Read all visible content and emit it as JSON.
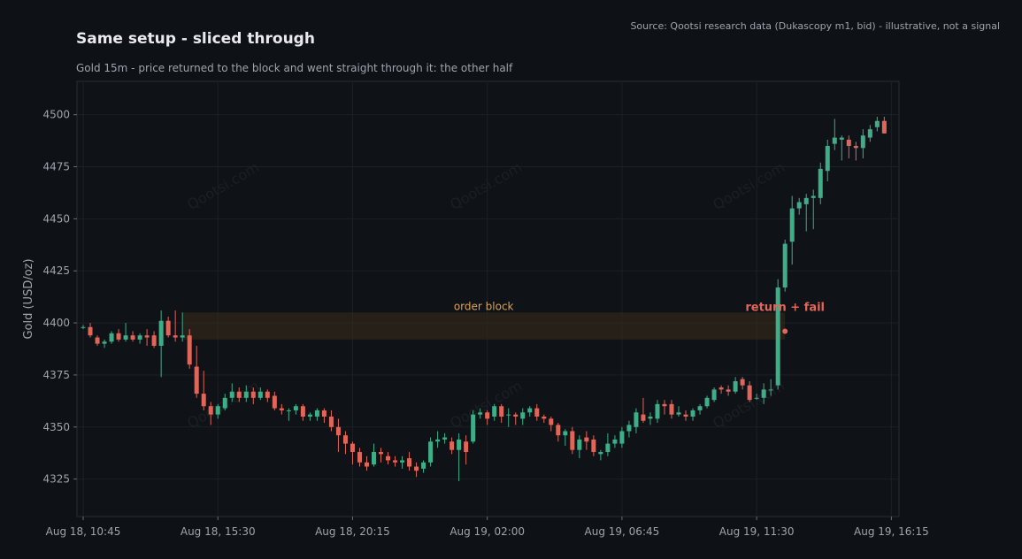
{
  "header": {
    "title": "Same setup - sliced through",
    "subtitle": "Gold 15m - price returned to the block and went straight through it: the other half",
    "source": "Source: Qootsi research data (Dukascopy m1, bid) - illustrative, not a signal"
  },
  "watermark": "Qootsi.com",
  "colors": {
    "background": "#0e1116",
    "panel": "#0f1217",
    "up": "#3fae88",
    "down": "#e0665a",
    "zone": "#3a2c1c",
    "zone_label": "#d9a25a",
    "annotation": "#e2665a",
    "grid": "#1c2027",
    "text": "#a0a4ab"
  },
  "chart_data": {
    "type": "candlestick",
    "ylabel": "Gold (USD/oz)",
    "xlabel": "",
    "ylim": [
      4307,
      4516
    ],
    "yticks": [
      4325,
      4350,
      4375,
      4400,
      4425,
      4450,
      4475,
      4500
    ],
    "xticks": [
      {
        "index": 0,
        "label": "Aug 18, 10:45"
      },
      {
        "index": 19,
        "label": "Aug 18, 15:30"
      },
      {
        "index": 38,
        "label": "Aug 18, 20:15"
      },
      {
        "index": 57,
        "label": "Aug 19, 02:00"
      },
      {
        "index": 76,
        "label": "Aug 19, 06:45"
      },
      {
        "index": 95,
        "label": "Aug 19, 11:30"
      },
      {
        "index": 114,
        "label": "Aug 19, 16:15"
      }
    ],
    "order_block": {
      "low": 4392,
      "high": 4405,
      "start_index": 14,
      "end_index": 99,
      "label": "order block"
    },
    "annotation": {
      "label": "return + fail",
      "index": 99,
      "price": 4396
    },
    "candles": [
      [
        4398,
        4399,
        4397,
        4398
      ],
      [
        4398,
        4400,
        4393,
        4394
      ],
      [
        4393,
        4394,
        4389,
        4390
      ],
      [
        4390,
        4392,
        4388,
        4391
      ],
      [
        4391,
        4396,
        4390,
        4395
      ],
      [
        4395,
        4397,
        4391,
        4392
      ],
      [
        4392,
        4400,
        4391,
        4394
      ],
      [
        4394,
        4396,
        4391,
        4392
      ],
      [
        4392,
        4395,
        4390,
        4394
      ],
      [
        4394,
        4397,
        4389,
        4393
      ],
      [
        4394,
        4396,
        4388,
        4389
      ],
      [
        4389,
        4406,
        4374,
        4401
      ],
      [
        4401,
        4403,
        4393,
        4394
      ],
      [
        4394,
        4406,
        4391,
        4393
      ],
      [
        4393,
        4405,
        4391,
        4394
      ],
      [
        4394,
        4397,
        4378,
        4380
      ],
      [
        4379,
        4389,
        4364,
        4366
      ],
      [
        4366,
        4377,
        4358,
        4360
      ],
      [
        4360,
        4362,
        4351,
        4356
      ],
      [
        4356,
        4361,
        4354,
        4360
      ],
      [
        4359,
        4366,
        4358,
        4364
      ],
      [
        4364,
        4371,
        4362,
        4367
      ],
      [
        4367,
        4369,
        4362,
        4364
      ],
      [
        4364,
        4370,
        4362,
        4367
      ],
      [
        4367,
        4369,
        4361,
        4364
      ],
      [
        4364,
        4369,
        4363,
        4367
      ],
      [
        4367,
        4368,
        4362,
        4364
      ],
      [
        4365,
        4367,
        4358,
        4359
      ],
      [
        4359,
        4361,
        4356,
        4358
      ],
      [
        4358,
        4359,
        4353,
        4358
      ],
      [
        4358,
        4361,
        4356,
        4360
      ],
      [
        4360,
        4361,
        4353,
        4355
      ],
      [
        4355,
        4357,
        4353,
        4356
      ],
      [
        4355,
        4359,
        4353,
        4358
      ],
      [
        4358,
        4359,
        4352,
        4355
      ],
      [
        4355,
        4358,
        4348,
        4350
      ],
      [
        4350,
        4354,
        4338,
        4346
      ],
      [
        4346,
        4348,
        4337,
        4342
      ],
      [
        4342,
        4343,
        4332,
        4338
      ],
      [
        4338,
        4340,
        4331,
        4333
      ],
      [
        4333,
        4336,
        4329,
        4331
      ],
      [
        4332,
        4342,
        4331,
        4338
      ],
      [
        4338,
        4340,
        4333,
        4337
      ],
      [
        4336,
        4338,
        4332,
        4334
      ],
      [
        4334,
        4336,
        4331,
        4333
      ],
      [
        4333,
        4336,
        4330,
        4334
      ],
      [
        4335,
        4338,
        4329,
        4331
      ],
      [
        4331,
        4333,
        4326,
        4329
      ],
      [
        4330,
        4334,
        4328,
        4333
      ],
      [
        4333,
        4345,
        4331,
        4343
      ],
      [
        4343,
        4348,
        4340,
        4344
      ],
      [
        4344,
        4347,
        4342,
        4345
      ],
      [
        4343,
        4345,
        4337,
        4339
      ],
      [
        4339,
        4347,
        4324,
        4344
      ],
      [
        4343,
        4346,
        4332,
        4338
      ],
      [
        4343,
        4358,
        4342,
        4356
      ],
      [
        4356,
        4359,
        4354,
        4357
      ],
      [
        4357,
        4358,
        4351,
        4354
      ],
      [
        4355,
        4361,
        4353,
        4360
      ],
      [
        4360,
        4361,
        4352,
        4355
      ],
      [
        4356,
        4359,
        4350,
        4356
      ],
      [
        4356,
        4357,
        4351,
        4355
      ],
      [
        4354,
        4359,
        4351,
        4357
      ],
      [
        4357,
        4360,
        4355,
        4359
      ],
      [
        4359,
        4361,
        4353,
        4355
      ],
      [
        4355,
        4356,
        4352,
        4354
      ],
      [
        4354,
        4355,
        4348,
        4351
      ],
      [
        4351,
        4352,
        4343,
        4346
      ],
      [
        4346,
        4349,
        4341,
        4348
      ],
      [
        4348,
        4350,
        4337,
        4339
      ],
      [
        4339,
        4346,
        4335,
        4344
      ],
      [
        4345,
        4348,
        4339,
        4343
      ],
      [
        4344,
        4346,
        4336,
        4338
      ],
      [
        4337,
        4339,
        4334,
        4338
      ],
      [
        4338,
        4347,
        4336,
        4342
      ],
      [
        4342,
        4346,
        4340,
        4344
      ],
      [
        4342,
        4350,
        4340,
        4348
      ],
      [
        4348,
        4353,
        4345,
        4351
      ],
      [
        4350,
        4359,
        4347,
        4357
      ],
      [
        4356,
        4364,
        4352,
        4353
      ],
      [
        4354,
        4357,
        4351,
        4355
      ],
      [
        4354,
        4363,
        4352,
        4361
      ],
      [
        4361,
        4363,
        4356,
        4360
      ],
      [
        4361,
        4363,
        4354,
        4356
      ],
      [
        4356,
        4360,
        4355,
        4357
      ],
      [
        4356,
        4358,
        4353,
        4355
      ],
      [
        4355,
        4359,
        4353,
        4358
      ],
      [
        4358,
        4361,
        4356,
        4360
      ],
      [
        4360,
        4365,
        4359,
        4364
      ],
      [
        4363,
        4369,
        4362,
        4368
      ],
      [
        4369,
        4370,
        4366,
        4368
      ],
      [
        4368,
        4370,
        4365,
        4367
      ],
      [
        4367,
        4374,
        4366,
        4372
      ],
      [
        4373,
        4374,
        4368,
        4370
      ],
      [
        4370,
        4372,
        4362,
        4363
      ],
      [
        4364,
        4366,
        4363,
        4364
      ],
      [
        4364,
        4371,
        4361,
        4368
      ],
      [
        4368,
        4373,
        4365,
        4368
      ],
      [
        4370,
        4421,
        4368,
        4417
      ],
      [
        4417,
        4440,
        4415,
        4438
      ],
      [
        4439,
        4461,
        4428,
        4455
      ],
      [
        4455,
        4460,
        4452,
        4458
      ],
      [
        4457,
        4462,
        4444,
        4460
      ],
      [
        4460,
        4464,
        4445,
        4461
      ],
      [
        4460,
        4477,
        4457,
        4474
      ],
      [
        4473,
        4488,
        4468,
        4485
      ],
      [
        4486,
        4498,
        4483,
        4489
      ],
      [
        4488,
        4490,
        4478,
        4489
      ],
      [
        4488,
        4490,
        4479,
        4485
      ],
      [
        4485,
        4487,
        4478,
        4484
      ],
      [
        4484,
        4493,
        4479,
        4490
      ],
      [
        4489,
        4495,
        4487,
        4493
      ],
      [
        4494,
        4499,
        4492,
        4497
      ],
      [
        4497,
        4499,
        4491,
        4491
      ]
    ]
  }
}
